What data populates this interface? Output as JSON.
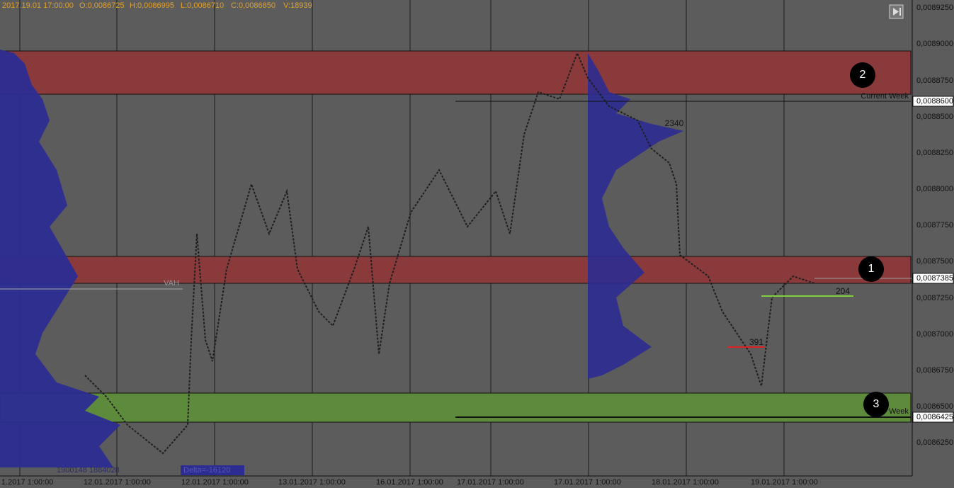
{
  "header": {
    "time": "2017.19.01 17:00:00",
    "open": "O:0,0086725",
    "high": "H:0,0086995",
    "low": "L:0,0086710",
    "close": "C:0,0086850",
    "volume": "V:18939"
  },
  "price_axis": [
    "0,0089250",
    "0,0089000",
    "0,0088750",
    "0,0088600",
    "0,0088500",
    "0,0088250",
    "0,0088000",
    "0,0087750",
    "0,0087500",
    "0,0087385",
    "0,0087250",
    "0,0087000",
    "0,0086750",
    "0,0086500",
    "0,0086425",
    "0,0086250"
  ],
  "markers": [
    "2",
    "1",
    "3"
  ],
  "annotations": {
    "current_week": "Current Week",
    "week": "Week",
    "vah": "VAH",
    "level_a": "2340",
    "level_b": "204",
    "level_c": "391",
    "volume": "1900148 1884028",
    "delta": "Delta=-16120"
  },
  "time_labels": [
    "1.2017 1:00:00",
    "12.01.2017 1:00:00",
    "12.01.2017 1:00:00",
    "13.01.2017 1:00:00",
    "16.01.2017 1:00:00",
    "17.01.2017 1:00:00",
    "17.01.2017 1:00:00",
    "18.01.2017 1:00:00",
    "19.01.2017 1:00:00"
  ]
}
